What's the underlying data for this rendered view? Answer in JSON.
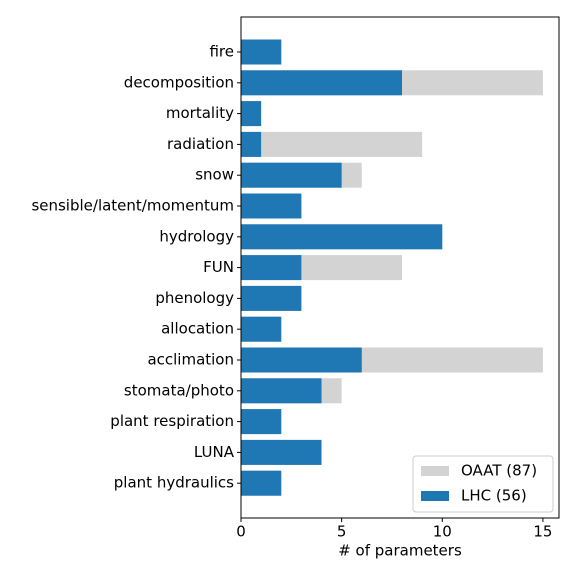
{
  "chart_data": {
    "type": "barh",
    "categories": [
      "fire",
      "decomposition",
      "mortality",
      "radiation",
      "snow",
      "sensible/latent/momentum",
      "hydrology",
      "FUN",
      "phenology",
      "allocation",
      "acclimation",
      "stomata/photo",
      "plant respiration",
      "LUNA",
      "plant hydraulics"
    ],
    "series": [
      {
        "name": "OAAT (87)",
        "color": "#d3d3d3",
        "values": [
          2,
          15,
          1,
          9,
          6,
          3,
          10,
          8,
          3,
          2,
          15,
          5,
          2,
          4,
          2
        ]
      },
      {
        "name": "LHC (56)",
        "color": "#1f77b4",
        "values": [
          2,
          8,
          1,
          1,
          5,
          3,
          10,
          3,
          3,
          2,
          6,
          4,
          2,
          4,
          2
        ]
      }
    ],
    "xlabel": "# of parameters",
    "xlim": [
      0,
      15.8
    ],
    "xticks": [
      0,
      5,
      10,
      15
    ],
    "legend": "lower right"
  }
}
